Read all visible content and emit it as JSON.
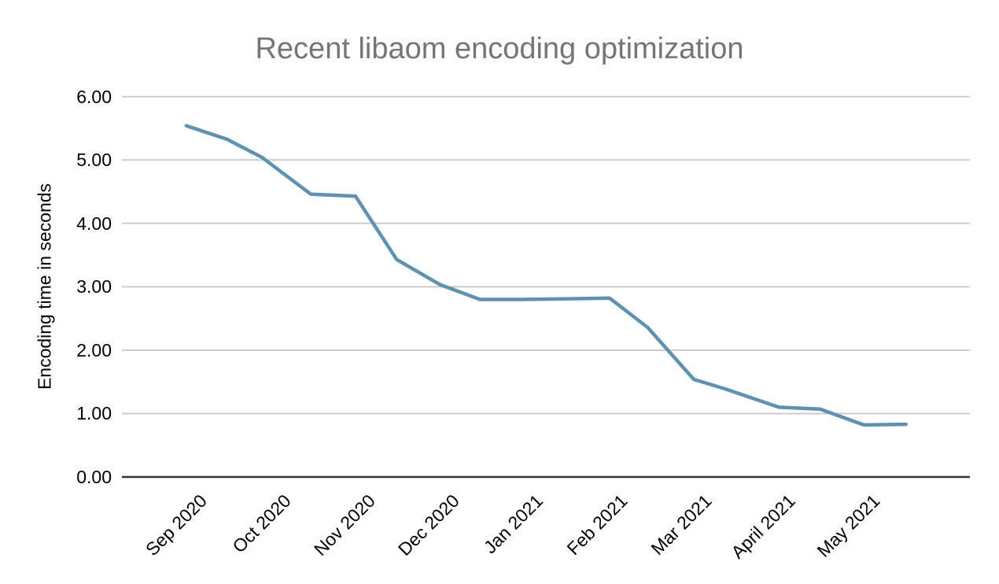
{
  "chart_data": {
    "type": "line",
    "title": "Recent libaom encoding optimization",
    "xlabel": "",
    "ylabel": "Encoding time in seconds",
    "categories": [
      "Sep 2020",
      "Oct 2020",
      "Nov 2020",
      "Dec 2020",
      "Jan 2021",
      "Feb 2021",
      "Mar 2021",
      "April 2021",
      "May 2021"
    ],
    "ylim": [
      0,
      6
    ],
    "grid": true,
    "legend_position": "none",
    "background_color": "#ffffff",
    "line_color": "#5f92b0",
    "yticks": [
      {
        "value": 0,
        "label": "0.00"
      },
      {
        "value": 1,
        "label": "1.00"
      },
      {
        "value": 2,
        "label": "2.00"
      },
      {
        "value": 3,
        "label": "3.00"
      },
      {
        "value": 4,
        "label": "4.00"
      },
      {
        "value": 5,
        "label": "5.00"
      },
      {
        "value": 6,
        "label": "6.00"
      }
    ],
    "series": [
      {
        "name": "Encoding time in seconds",
        "points": [
          {
            "x": -0.17,
            "y": 5.54
          },
          {
            "x": 0.31,
            "y": 5.33
          },
          {
            "x": 0.73,
            "y": 5.04
          },
          {
            "x": 1.31,
            "y": 4.46
          },
          {
            "x": 1.84,
            "y": 4.43
          },
          {
            "x": 2.33,
            "y": 3.43
          },
          {
            "x": 2.85,
            "y": 3.03
          },
          {
            "x": 3.32,
            "y": 2.8
          },
          {
            "x": 3.79,
            "y": 2.8
          },
          {
            "x": 4.3,
            "y": 2.81
          },
          {
            "x": 4.86,
            "y": 2.82
          },
          {
            "x": 5.31,
            "y": 2.36
          },
          {
            "x": 5.86,
            "y": 1.54
          },
          {
            "x": 6.23,
            "y": 1.39
          },
          {
            "x": 6.87,
            "y": 1.1
          },
          {
            "x": 7.36,
            "y": 1.07
          },
          {
            "x": 7.88,
            "y": 0.82
          },
          {
            "x": 8.38,
            "y": 0.83
          }
        ]
      }
    ]
  }
}
